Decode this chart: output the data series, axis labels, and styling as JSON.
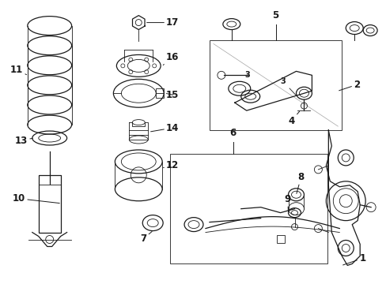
{
  "bg_color": "#ffffff",
  "line_color": "#1a1a1a",
  "figsize": [
    4.89,
    3.6
  ],
  "dpi": 100,
  "lw_thin": 0.6,
  "lw_med": 0.9,
  "lw_thick": 1.2,
  "font_size_label": 8.5,
  "font_size_number": 7.0
}
